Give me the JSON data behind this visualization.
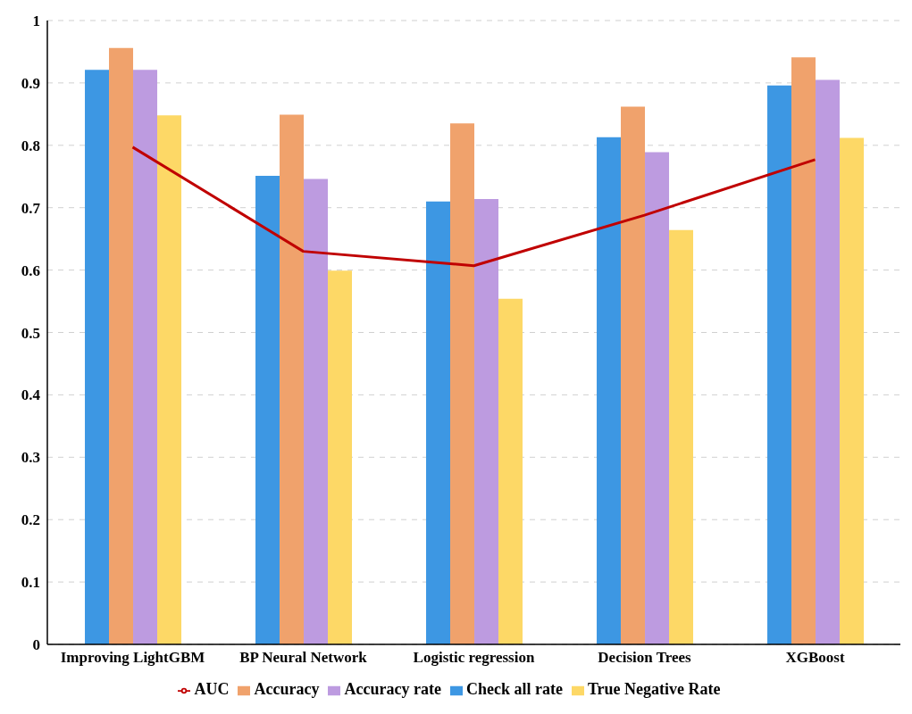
{
  "chart_data": {
    "type": "bar",
    "categories": [
      "Improving LightGBM",
      "BP Neural Network",
      "Logistic regression",
      "Decision Trees",
      "XGBoost"
    ],
    "series": [
      {
        "name": "Check all rate",
        "color": "#3d97e3",
        "values": [
          0.921,
          0.751,
          0.71,
          0.813,
          0.896
        ]
      },
      {
        "name": "Accuracy",
        "color": "#f0a26c",
        "values": [
          0.956,
          0.849,
          0.835,
          0.862,
          0.941
        ]
      },
      {
        "name": "Accuracy rate",
        "color": "#bd9be0",
        "values": [
          0.921,
          0.746,
          0.714,
          0.789,
          0.905
        ]
      },
      {
        "name": "True Negative Rate",
        "color": "#fdd866",
        "values": [
          0.848,
          0.599,
          0.554,
          0.664,
          0.812
        ]
      },
      {
        "name": "AUC",
        "type": "line",
        "color": "#c00000",
        "values": [
          0.797,
          0.63,
          0.607,
          0.688,
          0.777
        ]
      }
    ],
    "ylim": [
      0,
      1
    ],
    "yticks": [
      0,
      0.1,
      0.2,
      0.3,
      0.4,
      0.5,
      0.6,
      0.7,
      0.8,
      0.9,
      1
    ],
    "grid": "y",
    "legend": "bottom",
    "marker": "none",
    "line_style": "solid"
  }
}
